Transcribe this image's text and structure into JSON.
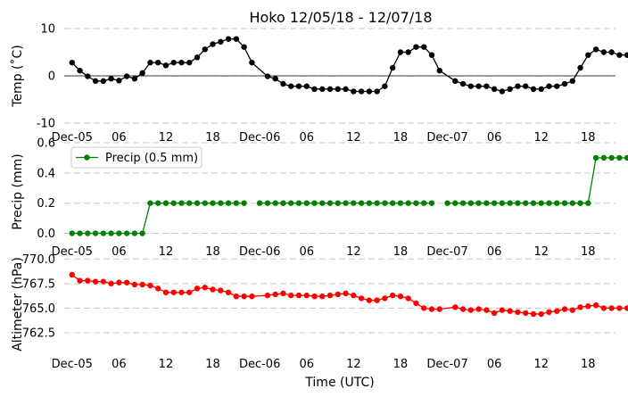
{
  "chart_data": [
    {
      "type": "line",
      "title": "Hoko 12/05/18 - 12/07/18",
      "ylabel": "Temp ($^\\circ$C)",
      "ylabel_display": "Temp (˚C)",
      "ylim": [
        -10,
        10
      ],
      "yticks": [
        -10,
        0,
        10
      ],
      "grid": true,
      "zero_line": true,
      "xlim": [
        -1,
        69.5
      ],
      "xtick_positions": [
        0,
        6,
        12,
        18,
        24,
        30,
        36,
        42,
        48,
        54,
        60,
        66
      ],
      "xtick_labels": [
        "Dec-05",
        "06",
        "12",
        "18",
        "Dec-06",
        "06",
        "12",
        "18",
        "Dec-07",
        "06",
        "12",
        "18"
      ],
      "series": [
        {
          "name": "",
          "color": "#000000",
          "x": [
            0,
            1,
            2,
            3,
            4,
            5,
            6,
            7,
            8,
            9,
            10,
            11,
            12,
            13,
            14,
            15,
            16,
            17,
            18,
            19,
            20,
            21,
            22,
            23,
            25,
            26,
            27,
            28,
            29,
            30,
            31,
            32,
            33,
            34,
            35,
            36,
            37,
            38,
            39,
            40,
            41,
            42,
            43,
            44,
            45,
            46,
            47,
            49,
            50,
            51,
            52,
            53,
            54,
            55,
            56,
            57,
            58,
            59,
            60,
            61,
            62,
            63,
            64,
            65,
            66,
            67,
            68,
            69,
            70,
            71
          ],
          "values": [
            2.8,
            1.1,
            -0.1,
            -1.1,
            -1.1,
            -0.6,
            -1.0,
            -0.1,
            -0.6,
            0.6,
            2.8,
            2.8,
            2.2,
            2.8,
            2.8,
            2.8,
            3.9,
            5.6,
            6.7,
            7.2,
            7.8,
            7.8,
            6.1,
            2.8,
            -0.1,
            -0.6,
            -1.7,
            -2.2,
            -2.2,
            -2.2,
            -2.8,
            -2.8,
            -2.8,
            -2.8,
            -2.8,
            -3.3,
            -3.3,
            -3.3,
            -3.3,
            -2.2,
            1.7,
            5.0,
            5.0,
            6.1,
            6.1,
            4.4,
            1.1,
            -1.1,
            -1.7,
            -2.2,
            -2.2,
            -2.2,
            -2.8,
            -3.3,
            -2.8,
            -2.2,
            -2.2,
            -2.8,
            -2.8,
            -2.2,
            -2.2,
            -1.7,
            -1.1,
            1.7,
            4.4,
            5.6,
            5.0,
            5.0,
            4.4,
            4.4
          ]
        }
      ]
    },
    {
      "type": "line",
      "ylabel": "Precip (mm)",
      "ylim": [
        -0.05,
        0.6
      ],
      "yticks": [
        0.0,
        0.2,
        0.4,
        0.6
      ],
      "ytick_labels": [
        "0.0",
        "0.2",
        "0.4",
        "0.6"
      ],
      "grid": true,
      "legend": "top-left",
      "xlim": [
        -1,
        69.5
      ],
      "xtick_positions": [
        0,
        6,
        12,
        18,
        24,
        30,
        36,
        42,
        48,
        54,
        60,
        66
      ],
      "xtick_labels": [
        "Dec-05",
        "06",
        "12",
        "18",
        "Dec-06",
        "06",
        "12",
        "18",
        "Dec-07",
        "06",
        "12",
        "18"
      ],
      "series": [
        {
          "name": "Precip (0.5 mm)",
          "color": "#008000",
          "segments": [
            {
              "x": [
                0,
                1,
                2,
                3,
                4,
                5,
                6,
                7,
                8,
                9,
                10,
                11,
                12,
                13,
                14,
                15,
                16,
                17,
                18,
                19,
                20,
                21,
                22
              ],
              "values": [
                0,
                0,
                0,
                0,
                0,
                0,
                0,
                0,
                0,
                0,
                0.2,
                0.2,
                0.2,
                0.2,
                0.2,
                0.2,
                0.2,
                0.2,
                0.2,
                0.2,
                0.2,
                0.2,
                0.2
              ]
            },
            {
              "x": [
                24,
                25,
                26,
                27,
                28,
                29,
                30,
                31,
                32,
                33,
                34,
                35,
                36,
                37,
                38,
                39,
                40,
                41,
                42,
                43,
                44,
                45,
                46
              ],
              "values": [
                0.2,
                0.2,
                0.2,
                0.2,
                0.2,
                0.2,
                0.2,
                0.2,
                0.2,
                0.2,
                0.2,
                0.2,
                0.2,
                0.2,
                0.2,
                0.2,
                0.2,
                0.2,
                0.2,
                0.2,
                0.2,
                0.2,
                0.2
              ]
            },
            {
              "x": [
                48,
                49,
                50,
                51,
                52,
                53,
                54,
                55,
                56,
                57,
                58,
                59,
                60,
                61,
                62,
                63,
                64,
                65,
                66,
                67,
                68,
                69,
                70,
                71
              ],
              "values": [
                0.2,
                0.2,
                0.2,
                0.2,
                0.2,
                0.2,
                0.2,
                0.2,
                0.2,
                0.2,
                0.2,
                0.2,
                0.2,
                0.2,
                0.2,
                0.2,
                0.2,
                0.2,
                0.2,
                0.5,
                0.5,
                0.5,
                0.5,
                0.5
              ]
            }
          ]
        }
      ]
    },
    {
      "type": "line",
      "ylabel": "Altimeter (hPa)",
      "xlabel": "Time (UTC)",
      "ylim": [
        760.5,
        770.3
      ],
      "yticks": [
        762.5,
        765.0,
        767.5,
        770.0
      ],
      "ytick_labels": [
        "762.5",
        "765.0",
        "767.5",
        "770.0"
      ],
      "grid": true,
      "xlim": [
        -1,
        69.5
      ],
      "xtick_positions": [
        0,
        6,
        12,
        18,
        24,
        30,
        36,
        42,
        48,
        54,
        60,
        66
      ],
      "xtick_labels": [
        "Dec-05",
        "06",
        "12",
        "18",
        "Dec-06",
        "06",
        "12",
        "18",
        "Dec-07",
        "06",
        "12",
        "18"
      ],
      "series": [
        {
          "name": "",
          "color": "#ff0000",
          "x": [
            0,
            1,
            2,
            3,
            4,
            5,
            6,
            7,
            8,
            9,
            10,
            11,
            12,
            13,
            14,
            15,
            16,
            17,
            18,
            19,
            20,
            21,
            22,
            23,
            25,
            26,
            27,
            28,
            29,
            30,
            31,
            32,
            33,
            34,
            35,
            36,
            37,
            38,
            39,
            40,
            41,
            42,
            43,
            44,
            45,
            46,
            47,
            49,
            50,
            51,
            52,
            53,
            54,
            55,
            56,
            57,
            58,
            59,
            60,
            61,
            62,
            63,
            64,
            65,
            66,
            67,
            68,
            69,
            70,
            71
          ],
          "values": [
            768.4,
            767.8,
            767.8,
            767.7,
            767.7,
            767.5,
            767.6,
            767.6,
            767.4,
            767.4,
            767.3,
            767.0,
            766.6,
            766.6,
            766.6,
            766.6,
            767.0,
            767.1,
            766.9,
            766.8,
            766.6,
            766.2,
            766.2,
            766.2,
            766.3,
            766.4,
            766.5,
            766.3,
            766.3,
            766.3,
            766.2,
            766.2,
            766.3,
            766.4,
            766.5,
            766.3,
            766.0,
            765.8,
            765.8,
            766.0,
            766.3,
            766.2,
            766.0,
            765.5,
            765.0,
            764.9,
            764.9,
            765.1,
            764.9,
            764.8,
            764.9,
            764.8,
            764.5,
            764.8,
            764.7,
            764.6,
            764.5,
            764.4,
            764.4,
            764.6,
            764.7,
            764.9,
            764.8,
            765.1,
            765.2,
            765.3,
            765.0,
            765.0,
            765.0,
            765.0
          ]
        }
      ]
    }
  ]
}
